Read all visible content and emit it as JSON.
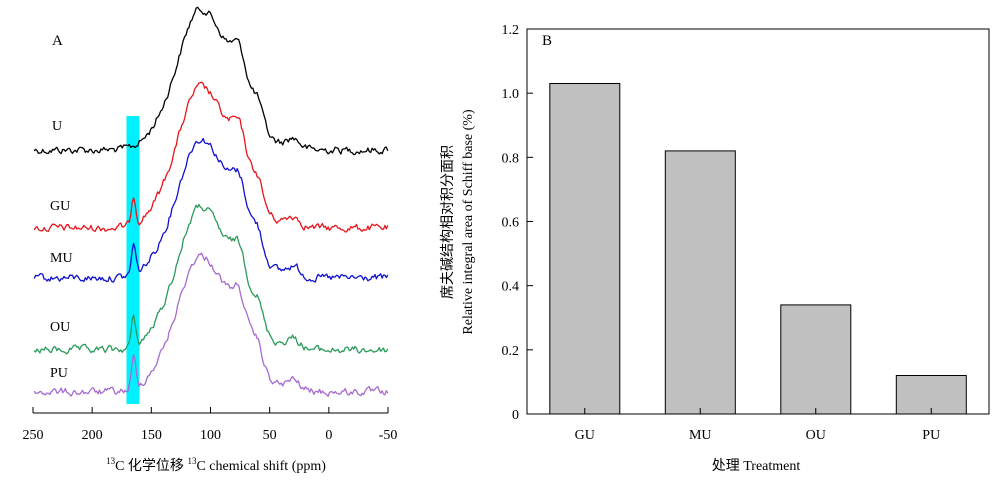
{
  "panel_a": {
    "label": "A",
    "xlabel_sup": "13",
    "xlabel_cn": "C 化学位移 ",
    "xlabel_sup2": "13",
    "xlabel_en": "C chemical shift (ppm)",
    "ticks": [
      "250",
      "200",
      "150",
      "100",
      "50",
      "0",
      "-50"
    ],
    "highlight_color": "#00f0ff"
  },
  "panel_b": {
    "label": "B",
    "ylabel_cn": "席夫碱结构相对积分面积",
    "ylabel_en": "Relative integral area of Schiff base (%)",
    "xlabel": "处理 Treatment",
    "yticks": [
      "0",
      "0.2",
      "0.4",
      "0.6",
      "0.8",
      "1.0",
      "1.2"
    ],
    "bar_color": "#c0c0c0"
  },
  "chart_data": [
    {
      "type": "line",
      "title": "",
      "xlabel": "13C 化学位移 13C chemical shift (ppm)",
      "ylabel": "",
      "xlim": [
        250,
        -50
      ],
      "highlight_ppm_range": [
        171,
        160
      ],
      "series": [
        {
          "name": "U",
          "color": "#000000",
          "peaks_ppm": [
            108,
            75,
            60,
            30
          ]
        },
        {
          "name": "GU",
          "color": "#e8141c",
          "peaks_ppm": [
            165,
            108,
            75,
            60
          ]
        },
        {
          "name": "MU",
          "color": "#1010d0",
          "peaks_ppm": [
            165,
            108,
            75,
            60
          ]
        },
        {
          "name": "OU",
          "color": "#2a9a5a",
          "peaks_ppm": [
            165,
            108,
            75,
            60
          ]
        },
        {
          "name": "PU",
          "color": "#a66ad0",
          "peaks_ppm": [
            165,
            108,
            60
          ]
        }
      ]
    },
    {
      "type": "bar",
      "title": "",
      "xlabel": "处理 Treatment",
      "ylabel": "席夫碱结构相对积分面积 Relative integral area of Schiff base (%)",
      "ylim": [
        0,
        1.2
      ],
      "categories": [
        "GU",
        "MU",
        "OU",
        "PU"
      ],
      "values": [
        1.03,
        0.82,
        0.34,
        0.12
      ]
    }
  ]
}
